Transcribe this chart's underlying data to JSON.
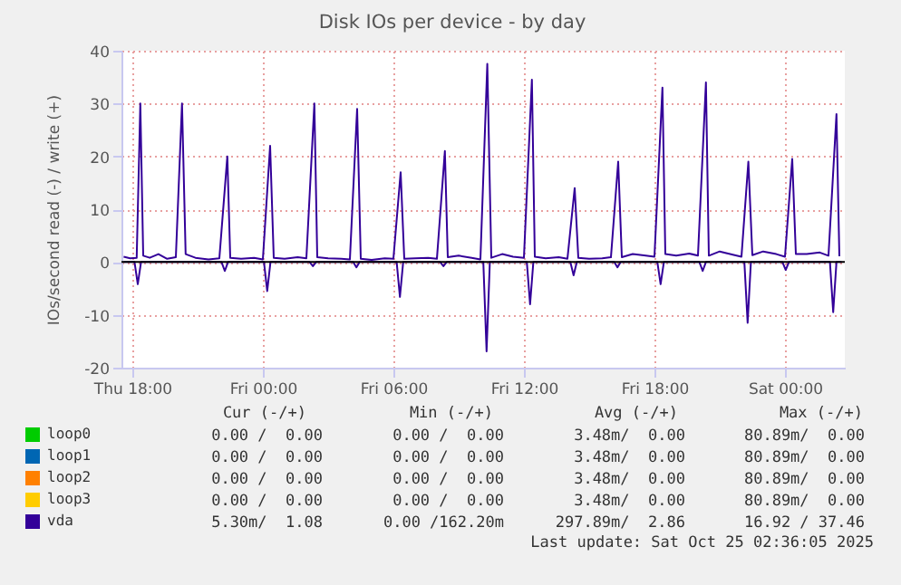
{
  "chart_data": {
    "type": "line",
    "title": "Disk IOs per device - by day",
    "ylabel": "IOs/second read (-) / write (+)",
    "xlim": [
      "2025-10-23T17:30",
      "2025-10-25T02:45"
    ],
    "ylim": [
      -20,
      40
    ],
    "xticks": [
      {
        "value": "2025-10-23T18:00",
        "label": "Thu 18:00"
      },
      {
        "value": "2025-10-24T00:00",
        "label": "Fri 00:00"
      },
      {
        "value": "2025-10-24T06:00",
        "label": "Fri 06:00"
      },
      {
        "value": "2025-10-24T12:00",
        "label": "Fri 12:00"
      },
      {
        "value": "2025-10-24T18:00",
        "label": "Fri 18:00"
      },
      {
        "value": "2025-10-25T00:00",
        "label": "Sat 00:00"
      }
    ],
    "yticks": [
      -20,
      -10,
      0,
      10,
      20,
      30,
      40
    ],
    "grid": true,
    "legend": "bottom left",
    "ref_lines": [
      {
        "axis": "y",
        "value": 0,
        "color": "#000000"
      }
    ],
    "series": [
      {
        "name": "loop0",
        "color": "#00cc00"
      },
      {
        "name": "loop1",
        "color": "#0066b3"
      },
      {
        "name": "loop2",
        "color": "#ff8000"
      },
      {
        "name": "loop3",
        "color": "#ffcc00"
      },
      {
        "name": "vda",
        "color": "#330099",
        "x": [
          "2025-10-23T17:36",
          "2025-10-23T17:54",
          "2025-10-23T18:12",
          "2025-10-23T18:22",
          "2025-10-23T18:30",
          "2025-10-23T18:48",
          "2025-10-23T19:12",
          "2025-10-23T19:36",
          "2025-10-23T20:00",
          "2025-10-23T20:17",
          "2025-10-23T20:27",
          "2025-10-23T20:54",
          "2025-10-23T21:30",
          "2025-10-23T22:00",
          "2025-10-23T22:22",
          "2025-10-23T22:30",
          "2025-10-23T23:00",
          "2025-10-23T23:36",
          "2025-10-24T00:00",
          "2025-10-24T00:20",
          "2025-10-24T00:30",
          "2025-10-24T01:00",
          "2025-10-24T01:36",
          "2025-10-24T02:00",
          "2025-10-24T02:22",
          "2025-10-24T02:30",
          "2025-10-24T03:00",
          "2025-10-24T03:36",
          "2025-10-24T04:00",
          "2025-10-24T04:20",
          "2025-10-24T04:30",
          "2025-10-24T05:00",
          "2025-10-24T05:36",
          "2025-10-24T06:00",
          "2025-10-24T06:20",
          "2025-10-24T06:30",
          "2025-10-24T07:00",
          "2025-10-24T07:36",
          "2025-10-24T08:00",
          "2025-10-24T08:22",
          "2025-10-24T08:30",
          "2025-10-24T09:00",
          "2025-10-24T09:36",
          "2025-10-24T10:00",
          "2025-10-24T10:19",
          "2025-10-24T10:30",
          "2025-10-24T11:00",
          "2025-10-24T11:30",
          "2025-10-24T12:00",
          "2025-10-24T12:22",
          "2025-10-24T12:30",
          "2025-10-24T13:00",
          "2025-10-24T13:36",
          "2025-10-24T14:00",
          "2025-10-24T14:20",
          "2025-10-24T14:30",
          "2025-10-24T15:00",
          "2025-10-24T15:36",
          "2025-10-24T16:00",
          "2025-10-24T16:20",
          "2025-10-24T16:30",
          "2025-10-24T17:00",
          "2025-10-24T17:36",
          "2025-10-24T18:00",
          "2025-10-24T18:22",
          "2025-10-24T18:30",
          "2025-10-24T19:00",
          "2025-10-24T19:36",
          "2025-10-24T20:00",
          "2025-10-24T20:22",
          "2025-10-24T20:30",
          "2025-10-24T21:00",
          "2025-10-24T21:36",
          "2025-10-24T22:00",
          "2025-10-24T22:19",
          "2025-10-24T22:30",
          "2025-10-24T23:00",
          "2025-10-24T23:36",
          "2025-10-25T00:00",
          "2025-10-25T00:20",
          "2025-10-25T00:30",
          "2025-10-25T01:00",
          "2025-10-25T01:36",
          "2025-10-25T02:00",
          "2025-10-25T02:22",
          "2025-10-25T02:30"
        ],
        "values": [
          1.0,
          0.7,
          0.8,
          30,
          1.2,
          0.8,
          1.5,
          0.6,
          0.9,
          30,
          1.5,
          0.8,
          0.5,
          0.7,
          20,
          0.8,
          0.6,
          0.8,
          0.5,
          22,
          0.8,
          0.6,
          0.9,
          0.7,
          30,
          0.9,
          0.7,
          0.6,
          0.5,
          29,
          0.6,
          0.4,
          0.7,
          0.6,
          17,
          0.6,
          0.7,
          0.8,
          0.6,
          21,
          0.9,
          1.2,
          0.8,
          0.5,
          37.5,
          0.8,
          1.5,
          1.0,
          0.8,
          34.5,
          1.0,
          0.7,
          0.9,
          0.6,
          14,
          0.8,
          0.6,
          0.7,
          0.9,
          19,
          0.9,
          1.5,
          1.2,
          1.0,
          33,
          1.5,
          1.2,
          1.6,
          1.2,
          34,
          1.2,
          2.0,
          1.4,
          1.0,
          19,
          1.3,
          2.0,
          1.5,
          1.0,
          19.5,
          1.5,
          1.5,
          1.8,
          1.2,
          28,
          1.1
        ]
      },
      {
        "color": "#330099",
        "x": [
          "2025-10-23T17:36",
          "2025-10-23T18:06",
          "2025-10-23T18:15",
          "2025-10-23T18:24",
          "2025-10-23T22:06",
          "2025-10-23T22:15",
          "2025-10-23T22:24",
          "2025-10-24T00:03",
          "2025-10-24T00:12",
          "2025-10-24T00:21",
          "2025-10-24T02:09",
          "2025-10-24T02:18",
          "2025-10-24T02:27",
          "2025-10-24T04:09",
          "2025-10-24T04:18",
          "2025-10-24T04:27",
          "2025-10-24T06:09",
          "2025-10-24T06:18",
          "2025-10-24T06:27",
          "2025-10-24T08:09",
          "2025-10-24T08:18",
          "2025-10-24T08:27",
          "2025-10-24T10:08",
          "2025-10-24T10:17",
          "2025-10-24T10:26",
          "2025-10-24T12:08",
          "2025-10-24T12:17",
          "2025-10-24T12:26",
          "2025-10-24T14:08",
          "2025-10-24T14:17",
          "2025-10-24T14:26",
          "2025-10-24T16:09",
          "2025-10-24T16:18",
          "2025-10-24T16:27",
          "2025-10-24T18:08",
          "2025-10-24T18:17",
          "2025-10-24T18:26",
          "2025-10-24T20:04",
          "2025-10-24T20:13",
          "2025-10-24T20:22",
          "2025-10-24T22:08",
          "2025-10-24T22:17",
          "2025-10-24T22:26",
          "2025-10-24T23:53",
          "2025-10-25T00:02",
          "2025-10-25T00:11",
          "2025-10-25T02:04",
          "2025-10-25T02:13",
          "2025-10-25T02:22",
          "2025-10-25T02:36"
        ],
        "values": [
          0,
          0,
          -4.2,
          0,
          0,
          -1.7,
          0,
          0,
          -5.5,
          0,
          0,
          -0.8,
          0,
          0,
          -1,
          0,
          0,
          -6.6,
          0,
          0,
          -0.8,
          0,
          0,
          -16.9,
          0,
          0,
          -8,
          0,
          0,
          -2.5,
          0,
          0,
          -1,
          0,
          0,
          -4.2,
          0,
          0,
          -1.7,
          0,
          0,
          -11.5,
          0,
          0,
          -1.5,
          0,
          0,
          -9.5,
          0,
          0
        ]
      }
    ],
    "annotations": [
      "Cur (-/+)",
      "Min (-/+)",
      "Avg (-/+)",
      "Max (-/+)",
      "0.00 /  0.00",
      "0.00 /  0.00",
      "3.48m/  0.00",
      "80.89m/  0.00",
      "0.00 /  0.00",
      "0.00 /  0.00",
      "3.48m/  0.00",
      "80.89m/  0.00",
      "0.00 /  0.00",
      "0.00 /  0.00",
      "3.48m/  0.00",
      "80.89m/  0.00",
      "0.00 /  0.00",
      "0.00 /  0.00",
      "3.48m/  0.00",
      "80.89m/  0.00",
      "5.30m/  1.08",
      "0.00 /162.20m",
      "297.89m/  2.86",
      "16.92 / 37.46",
      "Last update: Sat Oct 25 02:36:05 2025"
    ]
  }
}
